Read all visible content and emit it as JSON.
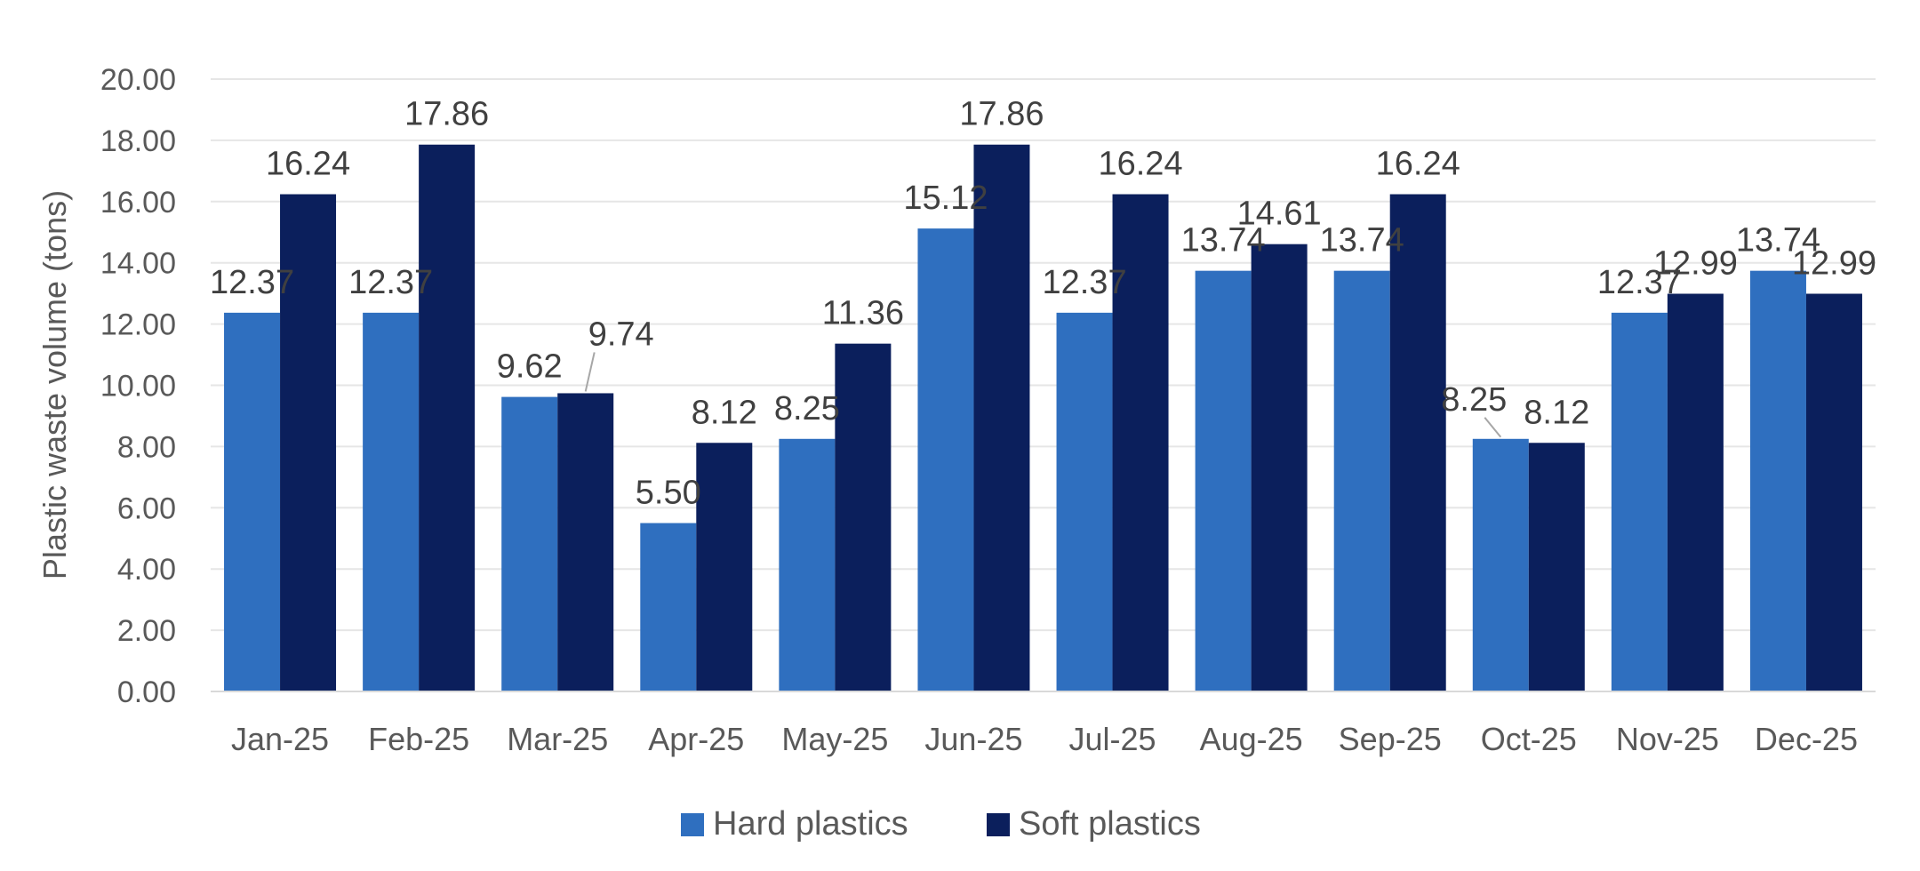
{
  "chart_data": {
    "type": "bar",
    "ylabel": "Plastic waste volume (tons)",
    "ylim": [
      0,
      20
    ],
    "ytick_step": 2,
    "ytick_decimals": 2,
    "grid": true,
    "legend_position": "bottom",
    "categories": [
      "Jan-25",
      "Feb-25",
      "Mar-25",
      "Apr-25",
      "May-25",
      "Jun-25",
      "Jul-25",
      "Aug-25",
      "Sep-25",
      "Oct-25",
      "Nov-25",
      "Dec-25"
    ],
    "series": [
      {
        "name": "Hard plastics",
        "color": "#2f6fbf",
        "values": [
          12.37,
          12.37,
          9.62,
          5.5,
          8.25,
          15.12,
          12.37,
          13.74,
          13.74,
          8.25,
          12.37,
          13.74
        ],
        "labels": [
          "12.37",
          "12.37",
          "9.62",
          "5.50",
          "8.25",
          "15.12",
          "12.37",
          "13.74",
          "13.74",
          "8.25",
          "12.37",
          "13.74"
        ]
      },
      {
        "name": "Soft plastics",
        "color": "#0b1f5c",
        "values": [
          16.24,
          17.86,
          9.74,
          8.12,
          11.36,
          17.86,
          16.24,
          14.61,
          16.24,
          8.12,
          12.99,
          12.99
        ],
        "labels": [
          "16.24",
          "17.86",
          "9.74",
          "8.12",
          "11.36",
          "17.86",
          "16.24",
          "14.61",
          "16.24",
          "8.12",
          "12.99",
          "12.99"
        ]
      }
    ]
  }
}
